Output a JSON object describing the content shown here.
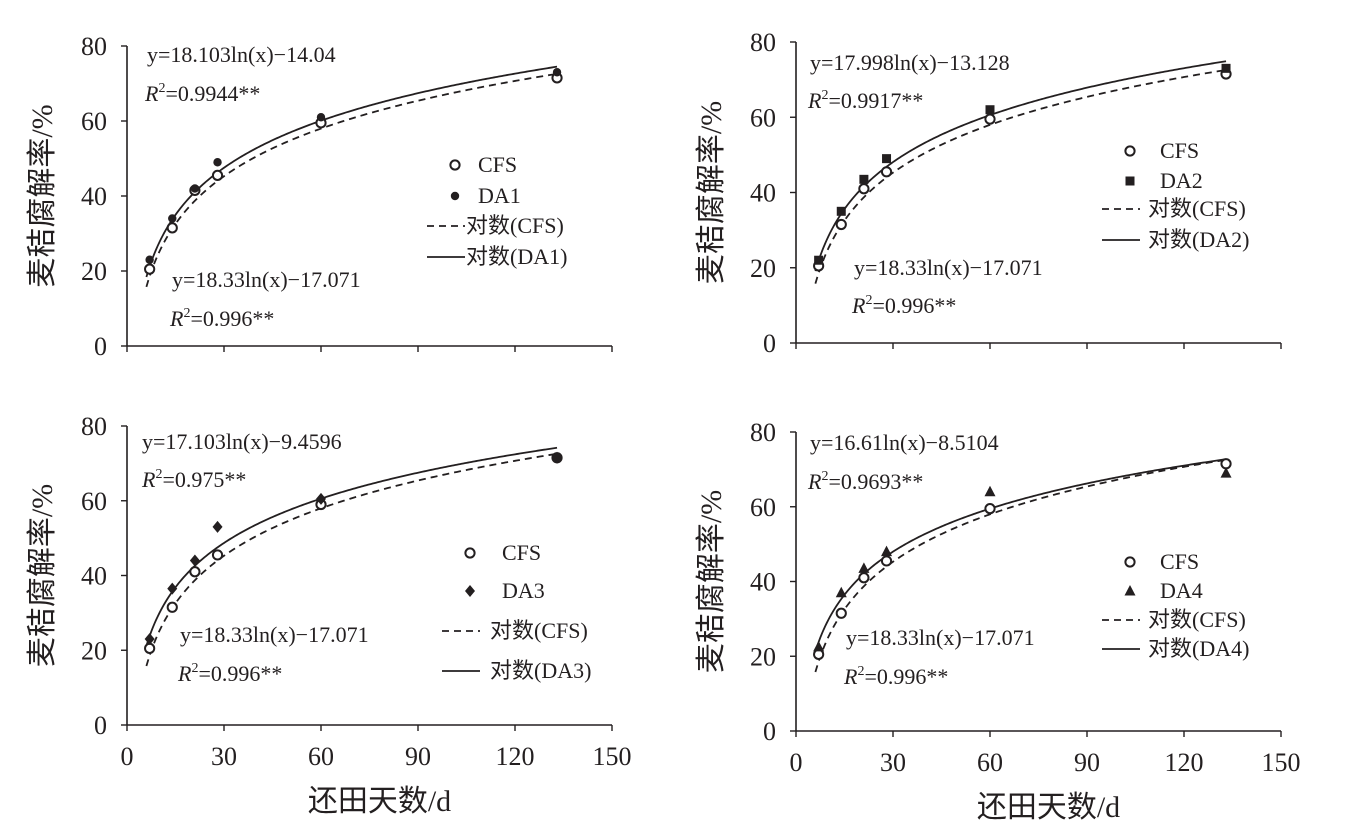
{
  "chart_data": [
    {
      "type": "scatter",
      "panel": "top-left",
      "ylabel": "麦秸腐解率/%",
      "xlabel": "",
      "xlim": [
        0,
        150
      ],
      "ylim": [
        0,
        80
      ],
      "xticks": [
        "0",
        "30",
        "60",
        "90",
        "120",
        "150"
      ],
      "yticks": [
        "0",
        "20",
        "40",
        "60",
        "80"
      ],
      "show_xticks": false,
      "legend_position": "right",
      "series": [
        {
          "name": "CFS",
          "marker": "circle-open",
          "x": [
            7,
            14,
            21,
            28,
            60,
            133
          ],
          "y": [
            20.5,
            31.5,
            41.5,
            45.5,
            59.5,
            71.5
          ]
        },
        {
          "name": "DA1",
          "marker": "dot",
          "x": [
            7,
            14,
            21,
            28,
            60,
            133
          ],
          "y": [
            23,
            34,
            42,
            49,
            61,
            73
          ]
        }
      ],
      "fits": [
        {
          "name": "对数(CFS)",
          "style": "dashed",
          "a": 18.33,
          "b": -17.071
        },
        {
          "name": "对数(DA1)",
          "style": "solid",
          "a": 18.103,
          "b": -14.04
        }
      ],
      "annotations": {
        "treat_eq": "y=18.103ln(x)−14.04",
        "treat_r2": "=0.9944**",
        "cfs_eq": "y=18.33ln(x)−17.071",
        "cfs_r2": "=0.996**"
      }
    },
    {
      "type": "scatter",
      "panel": "top-right",
      "ylabel": "麦秸腐解率/%",
      "xlabel": "",
      "xlim": [
        0,
        150
      ],
      "ylim": [
        0,
        80
      ],
      "xticks": [
        "0",
        "30",
        "60",
        "90",
        "120",
        "150"
      ],
      "yticks": [
        "0",
        "20",
        "40",
        "60",
        "80"
      ],
      "show_xticks": false,
      "legend_position": "right",
      "series": [
        {
          "name": "CFS",
          "marker": "circle-open",
          "x": [
            7,
            14,
            21,
            28,
            60,
            133
          ],
          "y": [
            20.5,
            31.5,
            41,
            45.5,
            59.5,
            71.5
          ]
        },
        {
          "name": "DA2",
          "marker": "square",
          "x": [
            7,
            14,
            21,
            28,
            60,
            133
          ],
          "y": [
            22,
            35,
            43.5,
            49,
            62,
            73
          ]
        }
      ],
      "fits": [
        {
          "name": "对数(CFS)",
          "style": "dashed",
          "a": 18.33,
          "b": -17.071
        },
        {
          "name": "对数(DA2)",
          "style": "solid",
          "a": 17.998,
          "b": -13.128
        }
      ],
      "annotations": {
        "treat_eq": "y=17.998ln(x)−13.128",
        "treat_r2": "=0.9917**",
        "cfs_eq": "y=18.33ln(x)−17.071",
        "cfs_r2": "=0.996**"
      }
    },
    {
      "type": "scatter",
      "panel": "bottom-left",
      "ylabel": "麦秸腐解率/%",
      "xlabel": "还田天数/d",
      "xlim": [
        0,
        150
      ],
      "ylim": [
        0,
        80
      ],
      "xticks": [
        "0",
        "30",
        "60",
        "90",
        "120",
        "150"
      ],
      "yticks": [
        "0",
        "20",
        "40",
        "60",
        "80"
      ],
      "show_xticks": true,
      "legend_position": "right",
      "series": [
        {
          "name": "CFS",
          "marker": "circle-open",
          "x": [
            7,
            14,
            21,
            28,
            60,
            133
          ],
          "y": [
            20.5,
            31.5,
            41,
            45.5,
            59,
            71.5
          ]
        },
        {
          "name": "DA3",
          "marker": "diamond",
          "x": [
            7,
            14,
            21,
            28,
            60,
            133
          ],
          "y": [
            23,
            36.5,
            44,
            53,
            60.5,
            71.5
          ]
        }
      ],
      "fits": [
        {
          "name": "对数(CFS)",
          "style": "dashed",
          "a": 18.33,
          "b": -17.071
        },
        {
          "name": "对数(DA3)",
          "style": "solid",
          "a": 17.103,
          "b": -9.4596
        }
      ],
      "annotations": {
        "treat_eq": "y=17.103ln(x)−9.4596",
        "treat_r2": "=0.975**",
        "cfs_eq": "y=18.33ln(x)−17.071",
        "cfs_r2": "=0.996**"
      }
    },
    {
      "type": "scatter",
      "panel": "bottom-right",
      "ylabel": "麦秸腐解率/%",
      "xlabel": "还田天数/d",
      "xlim": [
        0,
        150
      ],
      "ylim": [
        0,
        80
      ],
      "xticks": [
        "0",
        "30",
        "60",
        "90",
        "120",
        "150"
      ],
      "yticks": [
        "0",
        "20",
        "40",
        "60",
        "80"
      ],
      "show_xticks": true,
      "legend_position": "right",
      "series": [
        {
          "name": "CFS",
          "marker": "circle-open",
          "x": [
            7,
            14,
            21,
            28,
            60,
            133
          ],
          "y": [
            20.5,
            31.5,
            41,
            45.5,
            59.5,
            71.5
          ]
        },
        {
          "name": "DA4",
          "marker": "triangle",
          "x": [
            7,
            14,
            21,
            28,
            60,
            133
          ],
          "y": [
            22.5,
            37,
            43.5,
            48,
            64,
            69
          ]
        }
      ],
      "fits": [
        {
          "name": "对数(CFS)",
          "style": "dashed",
          "a": 18.33,
          "b": -17.071
        },
        {
          "name": "对数(DA4)",
          "style": "solid",
          "a": 16.61,
          "b": -8.5104
        }
      ],
      "annotations": {
        "treat_eq": "y=16.61ln(x)−8.5104",
        "treat_r2": "=0.9693**",
        "cfs_eq": "y=18.33ln(x)−17.071",
        "cfs_r2": "=0.996**"
      }
    }
  ]
}
